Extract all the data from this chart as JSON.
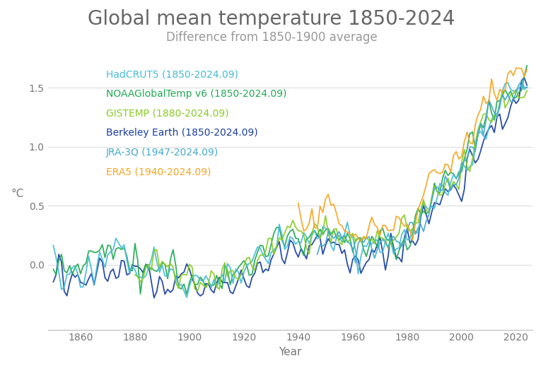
{
  "title": "Global mean temperature 1850-2024",
  "subtitle": "Difference from 1850-1900 average",
  "xlabel": "Year",
  "ylabel": "°C",
  "background_color": "#ffffff",
  "series": [
    {
      "name": "HadCRUT5 (1850-2024.09)",
      "color": "#45bcd4",
      "start_year": 1850,
      "lw": 1.3
    },
    {
      "name": "NOAAGlobalTemp v6 (1850-2024.09)",
      "color": "#22aa55",
      "start_year": 1850,
      "lw": 1.3
    },
    {
      "name": "GISTEMP (1880-2024.09)",
      "color": "#88cc22",
      "start_year": 1880,
      "lw": 1.3
    },
    {
      "name": "Berkeley Earth (1850-2024.09)",
      "color": "#1a3fa0",
      "start_year": 1850,
      "lw": 1.3
    },
    {
      "name": "JRA-3Q (1947-2024.09)",
      "color": "#44aacc",
      "start_year": 1947,
      "lw": 1.3
    },
    {
      "name": "ERA5 (1940-2024.09)",
      "color": "#f5a623",
      "start_year": 1940,
      "lw": 1.3
    }
  ],
  "ylim": [
    -0.55,
    1.75
  ],
  "xlim": [
    1848,
    2026
  ],
  "yticks": [
    0.0,
    0.5,
    1.0,
    1.5
  ],
  "ytick_labels": [
    "0.0",
    "0.5",
    "1.0",
    "1.5"
  ],
  "xticks": [
    1860,
    1880,
    1900,
    1920,
    1940,
    1960,
    1980,
    2000,
    2020
  ],
  "title_fontsize": 20,
  "subtitle_fontsize": 12,
  "axis_label_fontsize": 11,
  "tick_fontsize": 10,
  "legend_fontsize": 10
}
